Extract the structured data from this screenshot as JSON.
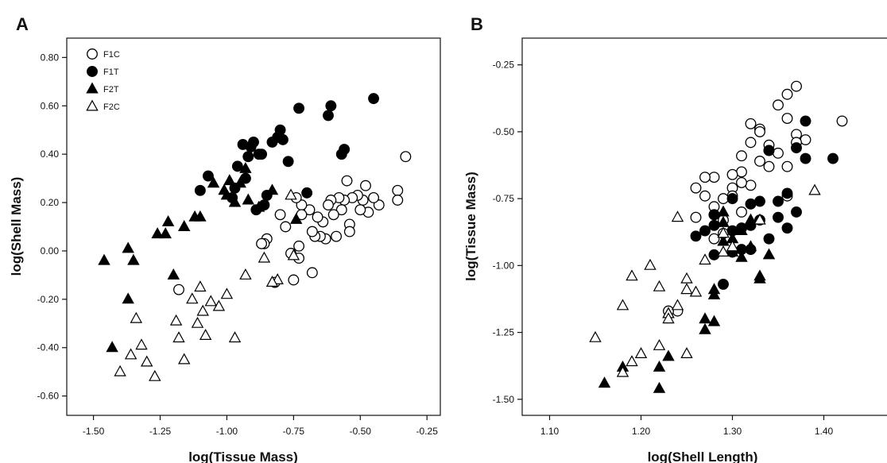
{
  "chart_data": [
    {
      "panel": "A",
      "type": "scatter",
      "xlabel": "log(Tissue Mass)",
      "ylabel": "log(Shell Mass)",
      "xlim": [
        -1.6,
        -0.2
      ],
      "ylim": [
        -0.68,
        0.88
      ],
      "xticks": [
        -1.5,
        -1.25,
        -1.0,
        -0.75,
        -0.5,
        -0.25
      ],
      "xtick_labels": [
        "-1.50",
        "-1.25",
        "-1.00",
        "-0.75",
        "-0.50",
        "-0.25"
      ],
      "yticks": [
        -0.6,
        -0.4,
        -0.2,
        0.0,
        0.2,
        0.4,
        0.6,
        0.8
      ],
      "ytick_labels": [
        "-0.60",
        "-0.40",
        "-0.20",
        "0.00",
        "0.20",
        "0.40",
        "0.60",
        "0.80"
      ],
      "legend_position": "top-left",
      "legend": [
        "F1C",
        "F1T",
        "F2T",
        "F2C"
      ],
      "series": [
        {
          "name": "F1C",
          "marker": "circle-open",
          "points": [
            [
              -0.33,
              0.39
            ],
            [
              -0.36,
              0.25
            ],
            [
              -0.36,
              0.21
            ],
            [
              -0.43,
              0.19
            ],
            [
              -0.45,
              0.22
            ],
            [
              -0.47,
              0.16
            ],
            [
              -0.48,
              0.27
            ],
            [
              -0.49,
              0.21
            ],
            [
              -0.5,
              0.17
            ],
            [
              -0.51,
              0.23
            ],
            [
              -0.53,
              0.22
            ],
            [
              -0.54,
              0.11
            ],
            [
              -0.54,
              0.08
            ],
            [
              -0.55,
              0.29
            ],
            [
              -0.56,
              0.21
            ],
            [
              -0.57,
              0.17
            ],
            [
              -0.58,
              0.22
            ],
            [
              -0.59,
              0.06
            ],
            [
              -0.6,
              0.15
            ],
            [
              -0.61,
              0.21
            ],
            [
              -0.62,
              0.19
            ],
            [
              -0.63,
              0.05
            ],
            [
              -0.64,
              0.12
            ],
            [
              -0.65,
              0.06
            ],
            [
              -0.66,
              0.14
            ],
            [
              -0.67,
              0.06
            ],
            [
              -0.68,
              0.08
            ],
            [
              -0.69,
              0.17
            ],
            [
              -0.68,
              -0.09
            ],
            [
              -0.72,
              0.19
            ],
            [
              -0.72,
              0.15
            ],
            [
              -0.73,
              0.02
            ],
            [
              -0.73,
              -0.03
            ],
            [
              -0.75,
              -0.12
            ],
            [
              -0.76,
              -0.01
            ],
            [
              -0.74,
              0.22
            ],
            [
              -0.78,
              0.1
            ],
            [
              -0.8,
              0.15
            ],
            [
              -0.82,
              -0.13
            ],
            [
              -0.85,
              0.05
            ],
            [
              -0.86,
              0.03
            ],
            [
              -0.87,
              0.03
            ],
            [
              -1.18,
              -0.16
            ]
          ]
        },
        {
          "name": "F1T",
          "marker": "circle-filled",
          "points": [
            [
              -0.45,
              0.63
            ],
            [
              -0.56,
              0.42
            ],
            [
              -0.57,
              0.4
            ],
            [
              -0.61,
              0.6
            ],
            [
              -0.62,
              0.56
            ],
            [
              -0.7,
              0.24
            ],
            [
              -0.73,
              0.59
            ],
            [
              -0.77,
              0.37
            ],
            [
              -0.79,
              0.46
            ],
            [
              -0.8,
              0.5
            ],
            [
              -0.81,
              0.47
            ],
            [
              -0.83,
              0.45
            ],
            [
              -0.85,
              0.23
            ],
            [
              -0.86,
              0.19
            ],
            [
              -0.87,
              0.4
            ],
            [
              -0.88,
              0.4
            ],
            [
              -0.89,
              0.17
            ],
            [
              -0.9,
              0.45
            ],
            [
              -0.91,
              0.43
            ],
            [
              -0.92,
              0.39
            ],
            [
              -0.93,
              0.3
            ],
            [
              -0.94,
              0.44
            ],
            [
              -0.96,
              0.35
            ],
            [
              -0.97,
              0.26
            ],
            [
              -0.98,
              0.22
            ],
            [
              -1.07,
              0.31
            ],
            [
              -1.1,
              0.25
            ]
          ]
        },
        {
          "name": "F2T",
          "marker": "triangle-filled",
          "points": [
            [
              -0.74,
              0.13
            ],
            [
              -0.83,
              0.25
            ],
            [
              -0.88,
              0.18
            ],
            [
              -0.92,
              0.21
            ],
            [
              -0.93,
              0.34
            ],
            [
              -0.95,
              0.28
            ],
            [
              -0.97,
              0.2
            ],
            [
              -0.99,
              0.29
            ],
            [
              -1.0,
              0.23
            ],
            [
              -1.01,
              0.25
            ],
            [
              -1.05,
              0.28
            ],
            [
              -1.1,
              0.14
            ],
            [
              -1.12,
              0.14
            ],
            [
              -1.16,
              0.1
            ],
            [
              -1.2,
              -0.1
            ],
            [
              -1.22,
              0.12
            ],
            [
              -1.23,
              0.07
            ],
            [
              -1.26,
              0.07
            ],
            [
              -1.37,
              -0.2
            ],
            [
              -1.37,
              0.01
            ],
            [
              -1.35,
              -0.04
            ],
            [
              -1.43,
              -0.4
            ],
            [
              -1.46,
              -0.04
            ]
          ]
        },
        {
          "name": "F2C",
          "marker": "triangle-open",
          "points": [
            [
              -0.75,
              -0.02
            ],
            [
              -0.76,
              0.23
            ],
            [
              -0.81,
              -0.12
            ],
            [
              -0.83,
              -0.13
            ],
            [
              -0.86,
              -0.03
            ],
            [
              -0.93,
              -0.1
            ],
            [
              -0.97,
              -0.36
            ],
            [
              -1.0,
              -0.18
            ],
            [
              -1.03,
              -0.23
            ],
            [
              -1.06,
              -0.21
            ],
            [
              -1.08,
              -0.35
            ],
            [
              -1.09,
              -0.25
            ],
            [
              -1.1,
              -0.15
            ],
            [
              -1.11,
              -0.3
            ],
            [
              -1.13,
              -0.2
            ],
            [
              -1.16,
              -0.45
            ],
            [
              -1.18,
              -0.36
            ],
            [
              -1.19,
              -0.29
            ],
            [
              -1.27,
              -0.52
            ],
            [
              -1.3,
              -0.46
            ],
            [
              -1.32,
              -0.39
            ],
            [
              -1.34,
              -0.28
            ],
            [
              -1.36,
              -0.43
            ],
            [
              -1.4,
              -0.5
            ]
          ]
        }
      ]
    },
    {
      "panel": "B",
      "type": "scatter",
      "xlabel": "log(Shell Length)",
      "ylabel": "log(Tissue Mass)",
      "xlim": [
        1.07,
        1.47
      ],
      "ylim": [
        -1.56,
        -0.15
      ],
      "xticks": [
        1.1,
        1.2,
        1.3,
        1.4
      ],
      "xtick_labels": [
        "1.10",
        "1.20",
        "1.30",
        "1.40"
      ],
      "yticks": [
        -1.5,
        -1.25,
        -1.0,
        -0.75,
        -0.5,
        -0.25
      ],
      "ytick_labels": [
        "-1.50",
        "-1.25",
        "-1.00",
        "-0.75",
        "-0.50",
        "-0.25"
      ],
      "series": [
        {
          "name": "F1C",
          "marker": "circle-open",
          "points": [
            [
              1.42,
              -0.46
            ],
            [
              1.38,
              -0.53
            ],
            [
              1.37,
              -0.33
            ],
            [
              1.37,
              -0.51
            ],
            [
              1.37,
              -0.54
            ],
            [
              1.36,
              -0.45
            ],
            [
              1.36,
              -0.36
            ],
            [
              1.36,
              -0.63
            ],
            [
              1.35,
              -0.58
            ],
            [
              1.35,
              -0.4
            ],
            [
              1.34,
              -0.55
            ],
            [
              1.34,
              -0.57
            ],
            [
              1.34,
              -0.63
            ],
            [
              1.33,
              -0.49
            ],
            [
              1.33,
              -0.5
            ],
            [
              1.33,
              -0.61
            ],
            [
              1.32,
              -0.47
            ],
            [
              1.32,
              -0.54
            ],
            [
              1.32,
              -0.7
            ],
            [
              1.31,
              -0.59
            ],
            [
              1.31,
              -0.65
            ],
            [
              1.31,
              -0.69
            ],
            [
              1.31,
              -0.8
            ],
            [
              1.31,
              -0.86
            ],
            [
              1.3,
              -0.66
            ],
            [
              1.3,
              -0.71
            ],
            [
              1.3,
              -0.74
            ],
            [
              1.29,
              -0.75
            ],
            [
              1.29,
              -0.83
            ],
            [
              1.29,
              -0.88
            ],
            [
              1.28,
              -0.67
            ],
            [
              1.28,
              -0.78
            ],
            [
              1.28,
              -0.81
            ],
            [
              1.28,
              -0.9
            ],
            [
              1.27,
              -0.67
            ],
            [
              1.27,
              -0.74
            ],
            [
              1.26,
              -0.71
            ],
            [
              1.26,
              -0.82
            ],
            [
              1.24,
              -1.17
            ],
            [
              1.23,
              -1.17
            ],
            [
              1.36,
              -0.74
            ]
          ]
        },
        {
          "name": "F1T",
          "marker": "circle-filled",
          "points": [
            [
              1.41,
              -0.6
            ],
            [
              1.38,
              -0.46
            ],
            [
              1.38,
              -0.6
            ],
            [
              1.37,
              -0.56
            ],
            [
              1.37,
              -0.8
            ],
            [
              1.36,
              -0.73
            ],
            [
              1.36,
              -0.86
            ],
            [
              1.35,
              -0.76
            ],
            [
              1.35,
              -0.82
            ],
            [
              1.34,
              -0.57
            ],
            [
              1.34,
              -0.9
            ],
            [
              1.33,
              -0.76
            ],
            [
              1.33,
              -0.83
            ],
            [
              1.32,
              -0.77
            ],
            [
              1.32,
              -0.85
            ],
            [
              1.32,
              -0.94
            ],
            [
              1.31,
              -0.86
            ],
            [
              1.31,
              -0.94
            ],
            [
              1.3,
              -0.75
            ],
            [
              1.3,
              -0.87
            ],
            [
              1.3,
              -0.95
            ],
            [
              1.29,
              -1.07
            ],
            [
              1.28,
              -0.81
            ],
            [
              1.28,
              -0.85
            ],
            [
              1.28,
              -0.96
            ],
            [
              1.27,
              -0.87
            ],
            [
              1.26,
              -0.89
            ]
          ]
        },
        {
          "name": "F2T",
          "marker": "triangle-filled",
          "points": [
            [
              1.34,
              -0.96
            ],
            [
              1.33,
              -1.04
            ],
            [
              1.33,
              -1.05
            ],
            [
              1.32,
              -0.83
            ],
            [
              1.32,
              -0.93
            ],
            [
              1.31,
              -0.87
            ],
            [
              1.31,
              -0.97
            ],
            [
              1.3,
              -0.9
            ],
            [
              1.3,
              -0.95
            ],
            [
              1.29,
              -0.8
            ],
            [
              1.29,
              -0.84
            ],
            [
              1.29,
              -0.91
            ],
            [
              1.28,
              -1.09
            ],
            [
              1.28,
              -1.11
            ],
            [
              1.28,
              -1.21
            ],
            [
              1.27,
              -1.2
            ],
            [
              1.27,
              -1.24
            ],
            [
              1.23,
              -1.18
            ],
            [
              1.23,
              -1.34
            ],
            [
              1.22,
              -1.46
            ],
            [
              1.22,
              -1.38
            ],
            [
              1.18,
              -1.38
            ],
            [
              1.16,
              -1.44
            ]
          ]
        },
        {
          "name": "F2C",
          "marker": "triangle-open",
          "points": [
            [
              1.39,
              -0.72
            ],
            [
              1.33,
              -0.83
            ],
            [
              1.3,
              -0.93
            ],
            [
              1.29,
              -0.88
            ],
            [
              1.29,
              -0.95
            ],
            [
              1.27,
              -0.98
            ],
            [
              1.26,
              -1.1
            ],
            [
              1.25,
              -1.05
            ],
            [
              1.25,
              -1.09
            ],
            [
              1.25,
              -1.33
            ],
            [
              1.24,
              -1.15
            ],
            [
              1.24,
              -0.82
            ],
            [
              1.23,
              -1.18
            ],
            [
              1.23,
              -1.2
            ],
            [
              1.22,
              -1.08
            ],
            [
              1.22,
              -1.3
            ],
            [
              1.21,
              -1.0
            ],
            [
              1.2,
              -1.33
            ],
            [
              1.19,
              -1.04
            ],
            [
              1.19,
              -1.36
            ],
            [
              1.18,
              -1.15
            ],
            [
              1.18,
              -1.4
            ],
            [
              1.15,
              -1.27
            ]
          ]
        }
      ]
    }
  ]
}
